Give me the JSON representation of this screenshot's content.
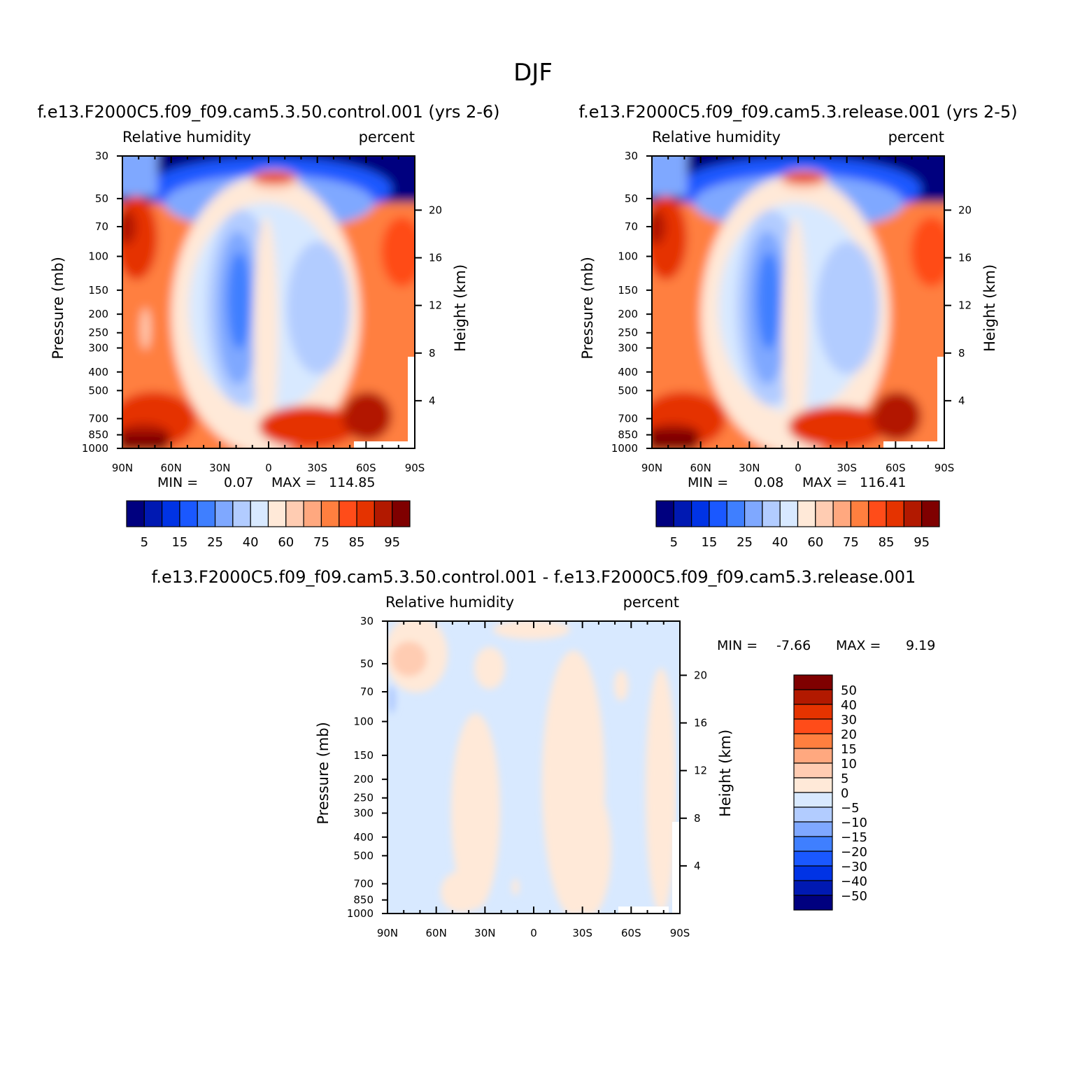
{
  "figure": {
    "title": "DJF",
    "colors": {
      "abs_scale": [
        "#00007f",
        "#0019b2",
        "#0033e5",
        "#1a58ff",
        "#3f7fff",
        "#7fa8ff",
        "#b2ccff",
        "#d8e9ff",
        "#ffe9d8",
        "#ffccb2",
        "#ffa87f",
        "#ff7f3f",
        "#ff4c19",
        "#e53300",
        "#b21900",
        "#7f0000"
      ],
      "diff_scale": [
        "#7f0000",
        "#b21900",
        "#e53300",
        "#ff4c19",
        "#ff7f3f",
        "#ffa87f",
        "#ffccb2",
        "#ffe9d8",
        "#d8e9ff",
        "#b2ccff",
        "#7fa8ff",
        "#3f7fff",
        "#1a58ff",
        "#0033e5",
        "#0019b2",
        "#00007f"
      ]
    }
  },
  "chart_data": [
    {
      "id": "panel-control",
      "type": "heatmap",
      "title": "f.e13.F2000C5.f09_f09.cam5.3.50.control.001 (yrs 2-6)",
      "left_label": "Relative humidity",
      "right_label": "percent",
      "ylabel": "Pressure (mb)",
      "y2label": "Height (km)",
      "xticks": [
        "90N",
        "60N",
        "30N",
        "0",
        "30S",
        "60S",
        "90S"
      ],
      "x": [
        90,
        60,
        30,
        0,
        -30,
        -60,
        -90
      ],
      "xlim": [
        90,
        -90
      ],
      "yticks": [
        30,
        50,
        70,
        100,
        150,
        200,
        250,
        300,
        400,
        500,
        700,
        850,
        1000
      ],
      "ylim": [
        30,
        1000
      ],
      "yscale": "log",
      "y2ticks": [
        20,
        16,
        12,
        8,
        4
      ],
      "min_label": "MIN =",
      "min": "0.07",
      "max_label": "MAX =",
      "max": "114.85",
      "colorbar": {
        "orientation": "horizontal",
        "labels": [
          "5",
          "15",
          "25",
          "40",
          "60",
          "75",
          "85",
          "95"
        ]
      }
    },
    {
      "id": "panel-release",
      "type": "heatmap",
      "title": "f.e13.F2000C5.f09_f09.cam5.3.release.001 (yrs 2-5)",
      "left_label": "Relative humidity",
      "right_label": "percent",
      "ylabel": "Pressure (mb)",
      "y2label": "Height (km)",
      "xticks": [
        "90N",
        "60N",
        "30N",
        "0",
        "30S",
        "60S",
        "90S"
      ],
      "x": [
        90,
        60,
        30,
        0,
        -30,
        -60,
        -90
      ],
      "xlim": [
        90,
        -90
      ],
      "yticks": [
        30,
        50,
        70,
        100,
        150,
        200,
        250,
        300,
        400,
        500,
        700,
        850,
        1000
      ],
      "ylim": [
        30,
        1000
      ],
      "yscale": "log",
      "y2ticks": [
        20,
        16,
        12,
        8,
        4
      ],
      "min_label": "MIN =",
      "min": "0.08",
      "max_label": "MAX =",
      "max": "116.41",
      "colorbar": {
        "orientation": "horizontal",
        "labels": [
          "5",
          "15",
          "25",
          "40",
          "60",
          "75",
          "85",
          "95"
        ]
      }
    },
    {
      "id": "panel-diff",
      "type": "heatmap",
      "title": "f.e13.F2000C5.f09_f09.cam5.3.50.control.001 - f.e13.F2000C5.f09_f09.cam5.3.release.001",
      "left_label": "Relative humidity",
      "right_label": "percent",
      "ylabel": "Pressure (mb)",
      "y2label": "Height (km)",
      "xticks": [
        "90N",
        "60N",
        "30N",
        "0",
        "30S",
        "60S",
        "90S"
      ],
      "x": [
        90,
        60,
        30,
        0,
        -30,
        -60,
        -90
      ],
      "xlim": [
        90,
        -90
      ],
      "yticks": [
        30,
        50,
        70,
        100,
        150,
        200,
        250,
        300,
        400,
        500,
        700,
        850,
        1000
      ],
      "ylim": [
        30,
        1000
      ],
      "yscale": "log",
      "y2ticks": [
        20,
        16,
        12,
        8,
        4
      ],
      "min_label": "MIN =",
      "min": "-7.66",
      "max_label": "MAX =",
      "max": "9.19",
      "colorbar": {
        "orientation": "vertical",
        "labels": [
          "50",
          "40",
          "30",
          "20",
          "15",
          "10",
          "5",
          "0",
          "-5",
          "-10",
          "-15",
          "-20",
          "-30",
          "-40",
          "-50"
        ]
      }
    }
  ]
}
